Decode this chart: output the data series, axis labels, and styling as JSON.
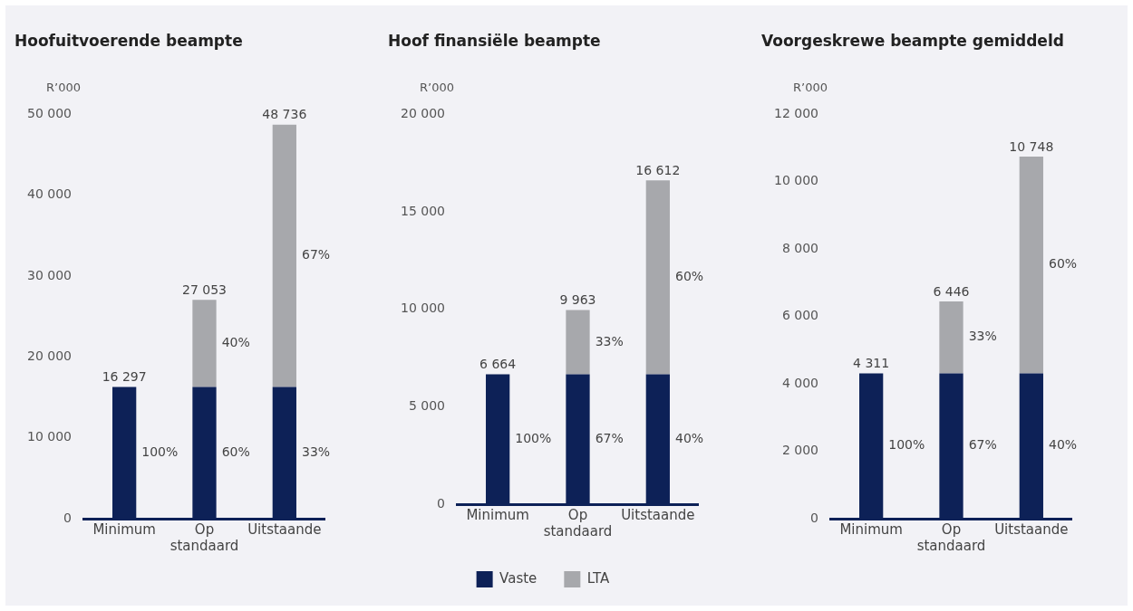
{
  "chart_data": [
    {
      "type": "bar",
      "title": "Hoofuitvoerende beampte",
      "ylabel": "R’000",
      "categories": [
        "Minimum",
        "Op standaard",
        "Uitstaande"
      ],
      "stacked": true,
      "grid": false,
      "legend": false,
      "series": [
        {
          "color": "#0d2157",
          "values": [
            16297,
            16297,
            16297
          ]
        },
        {
          "color": "#a7a8ac",
          "values": [
            0,
            10756,
            32439
          ]
        }
      ],
      "annotations": [
        "100%",
        "60%",
        "33%",
        "40%",
        "67%"
      ],
      "totals": [
        "16 297",
        "27 053",
        "48 736"
      ],
      "ylim": [
        0,
        50000
      ],
      "yticks": [
        {
          "value": 0,
          "label": "0"
        },
        {
          "value": 10000,
          "label": "10 000"
        },
        {
          "value": 20000,
          "label": "20 000"
        },
        {
          "value": 30000,
          "label": "30 000"
        },
        {
          "value": 40000,
          "label": "40 000"
        },
        {
          "value": 50000,
          "label": "50 000"
        }
      ]
    },
    {
      "type": "bar",
      "title": "Hoof finansiële beampte",
      "ylabel": "R’000",
      "categories": [
        "Minimum",
        "Op standaard",
        "Uitstaande"
      ],
      "stacked": true,
      "grid": false,
      "legend": "bottom",
      "series": [
        {
          "name": "Vaste",
          "color": "#0d2157",
          "values": [
            6664,
            6664,
            6664
          ]
        },
        {
          "name": "LTA",
          "color": "#a7a8ac",
          "values": [
            0,
            3299,
            9948
          ]
        }
      ],
      "annotations": [
        "100%",
        "67%",
        "40%",
        "33%",
        "60%"
      ],
      "totals": [
        "6 664",
        "9 963",
        "16 612"
      ],
      "ylim": [
        0,
        20000
      ],
      "yticks": [
        {
          "value": 0,
          "label": "0"
        },
        {
          "value": 5000,
          "label": "5 000"
        },
        {
          "value": 10000,
          "label": "10 000"
        },
        {
          "value": 15000,
          "label": "15 000"
        },
        {
          "value": 20000,
          "label": "20 000"
        }
      ]
    },
    {
      "type": "bar",
      "title": "Voorgeskrewe beampte gemiddeld",
      "ylabel": "R’000",
      "categories": [
        "Minimum",
        "Op standaard",
        "Uitstaande"
      ],
      "stacked": true,
      "grid": false,
      "legend": false,
      "series": [
        {
          "color": "#0d2157",
          "values": [
            4311,
            4311,
            4311
          ]
        },
        {
          "color": "#a7a8ac",
          "values": [
            0,
            2135,
            6437
          ]
        }
      ],
      "annotations": [
        "100%",
        "67%",
        "40%",
        "33%",
        "60%"
      ],
      "totals": [
        "4 311",
        "6 446",
        "10 748"
      ],
      "ylim": [
        0,
        12000
      ],
      "yticks": [
        {
          "value": 0,
          "label": "0"
        },
        {
          "value": 2000,
          "label": "2 000"
        },
        {
          "value": 4000,
          "label": "4 000"
        },
        {
          "value": 6000,
          "label": "6 000"
        },
        {
          "value": 8000,
          "label": "8 000"
        },
        {
          "value": 10000,
          "label": "10 000"
        },
        {
          "value": 12000,
          "label": "12 000"
        }
      ]
    }
  ]
}
